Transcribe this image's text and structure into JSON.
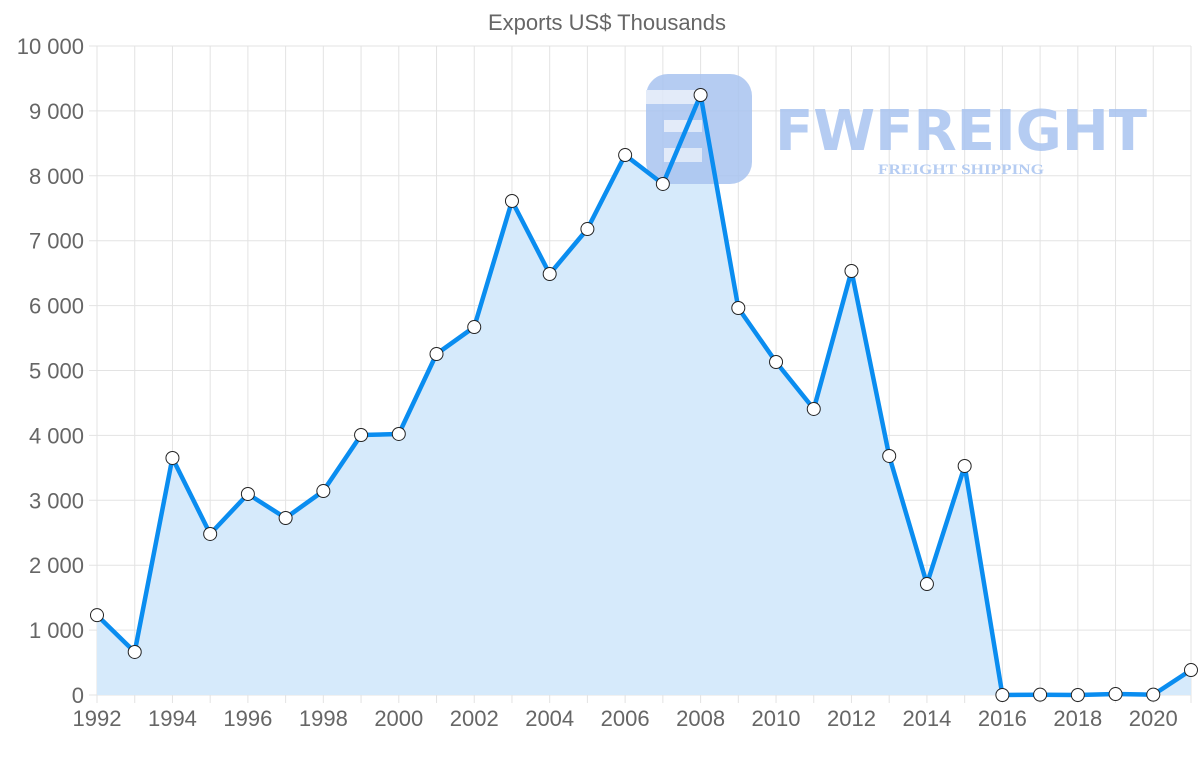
{
  "chart_data": {
    "type": "line",
    "title": "Exports US$ Thousands",
    "xlabel": "",
    "ylabel": "",
    "x": [
      1992,
      1993,
      1994,
      1995,
      1996,
      1997,
      1998,
      1999,
      2000,
      2001,
      2002,
      2003,
      2004,
      2005,
      2006,
      2007,
      2008,
      2009,
      2010,
      2011,
      2012,
      2013,
      2014,
      2015,
      2016,
      2017,
      2018,
      2019,
      2020,
      2021
    ],
    "series": [
      {
        "name": "Exports US$ Thousands",
        "values": [
          1230,
          663,
          3652,
          2481,
          3097,
          2727,
          3143,
          4006,
          4022,
          5254,
          5670,
          7612,
          6487,
          7180,
          8320,
          7874,
          9245,
          5963,
          5131,
          4407,
          6533,
          3683,
          1710,
          3529,
          0,
          5,
          0,
          15,
          5,
          385
        ],
        "color": "#0a8df0",
        "fill": "#d6eafb"
      }
    ],
    "ylim": [
      0,
      10000
    ],
    "xlim": [
      1992,
      2021
    ],
    "yticks": [
      "0",
      "1 000",
      "2 000",
      "3 000",
      "4 000",
      "5 000",
      "6 000",
      "7 000",
      "8 000",
      "9 000",
      "10 000"
    ],
    "xticks": [
      "1992",
      "1994",
      "1996",
      "1998",
      "2000",
      "2002",
      "2004",
      "2006",
      "2008",
      "2010",
      "2012",
      "2014",
      "2016",
      "2018",
      "2020"
    ],
    "grid": true,
    "legend": "none"
  },
  "watermark": {
    "brand": "FWFREIGHT",
    "tagline": "FREIGHT SHIPPING",
    "color": "#a9c4f0"
  }
}
